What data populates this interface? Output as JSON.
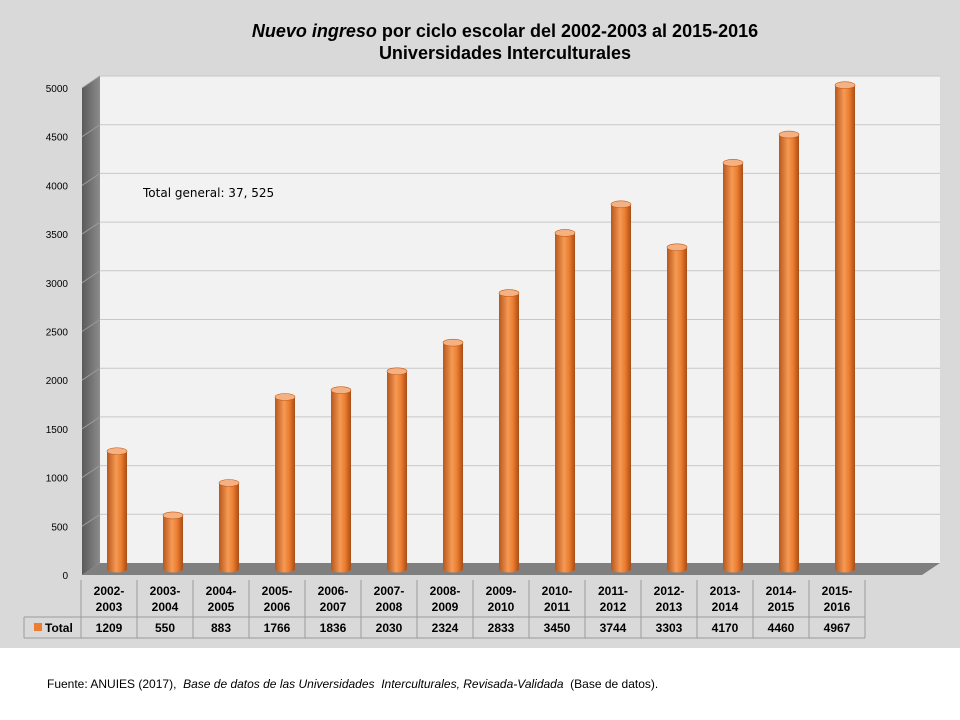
{
  "chart_data": {
    "type": "bar",
    "title_italic": "Nuevo ingreso",
    "title_rest": " por ciclo escolar del 2002-2003 al  2015-2016",
    "subtitle": "Universidades Interculturales",
    "categories": [
      [
        "2002-",
        "2003"
      ],
      [
        "2003-",
        "2004"
      ],
      [
        "2004-",
        "2005"
      ],
      [
        "2005-",
        "2006"
      ],
      [
        "2006-",
        "2007"
      ],
      [
        "2007-",
        "2008"
      ],
      [
        "2008-",
        "2009"
      ],
      [
        "2009-",
        "2010"
      ],
      [
        "2010-",
        "2011"
      ],
      [
        "2011-",
        "2012"
      ],
      [
        "2012-",
        "2013"
      ],
      [
        "2013-",
        "2014"
      ],
      [
        "2014-",
        "2015"
      ],
      [
        "2015-",
        "2016"
      ]
    ],
    "series": [
      {
        "name": "Total",
        "values": [
          1209,
          550,
          883,
          1766,
          1836,
          2030,
          2324,
          2833,
          3450,
          3744,
          3303,
          4170,
          4460,
          4967
        ],
        "color": "#ed7d31"
      }
    ],
    "y_ticks": [
      "0",
      "500",
      "1000",
      "1500",
      "2000",
      "2500",
      "3000",
      "3500",
      "4000",
      "4500",
      "5000"
    ],
    "ylim": [
      0,
      5000
    ],
    "grid": true,
    "annotation": "Total general: 37, 525",
    "legend_placement": "data-table-left"
  },
  "footer": {
    "prefix": "Fuente: ANUIES (2017),  ",
    "italic": "Base de datos de las Universidades  Interculturales, Revisada-Validada",
    "suffix": "  (Base de datos)."
  }
}
